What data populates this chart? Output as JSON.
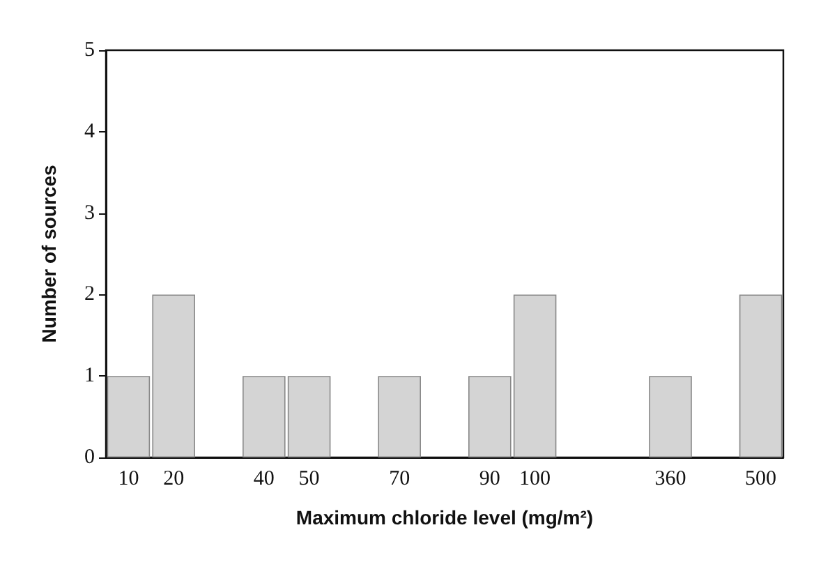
{
  "chart_data": {
    "type": "bar",
    "xlabel": "Maximum chloride level (mg/m²)",
    "ylabel": "Number of sources",
    "categories": [
      "10",
      "20",
      null,
      "40",
      "50",
      null,
      "70",
      null,
      "90",
      "100",
      null,
      null,
      "360",
      null,
      "500"
    ],
    "values": [
      1,
      2,
      null,
      1,
      1,
      null,
      1,
      null,
      1,
      2,
      null,
      null,
      1,
      null,
      2
    ],
    "color": "#d4d4d4",
    "ylim": [
      0,
      5
    ],
    "yticks": [
      0,
      1,
      2,
      3,
      4,
      5
    ],
    "grid": false
  }
}
